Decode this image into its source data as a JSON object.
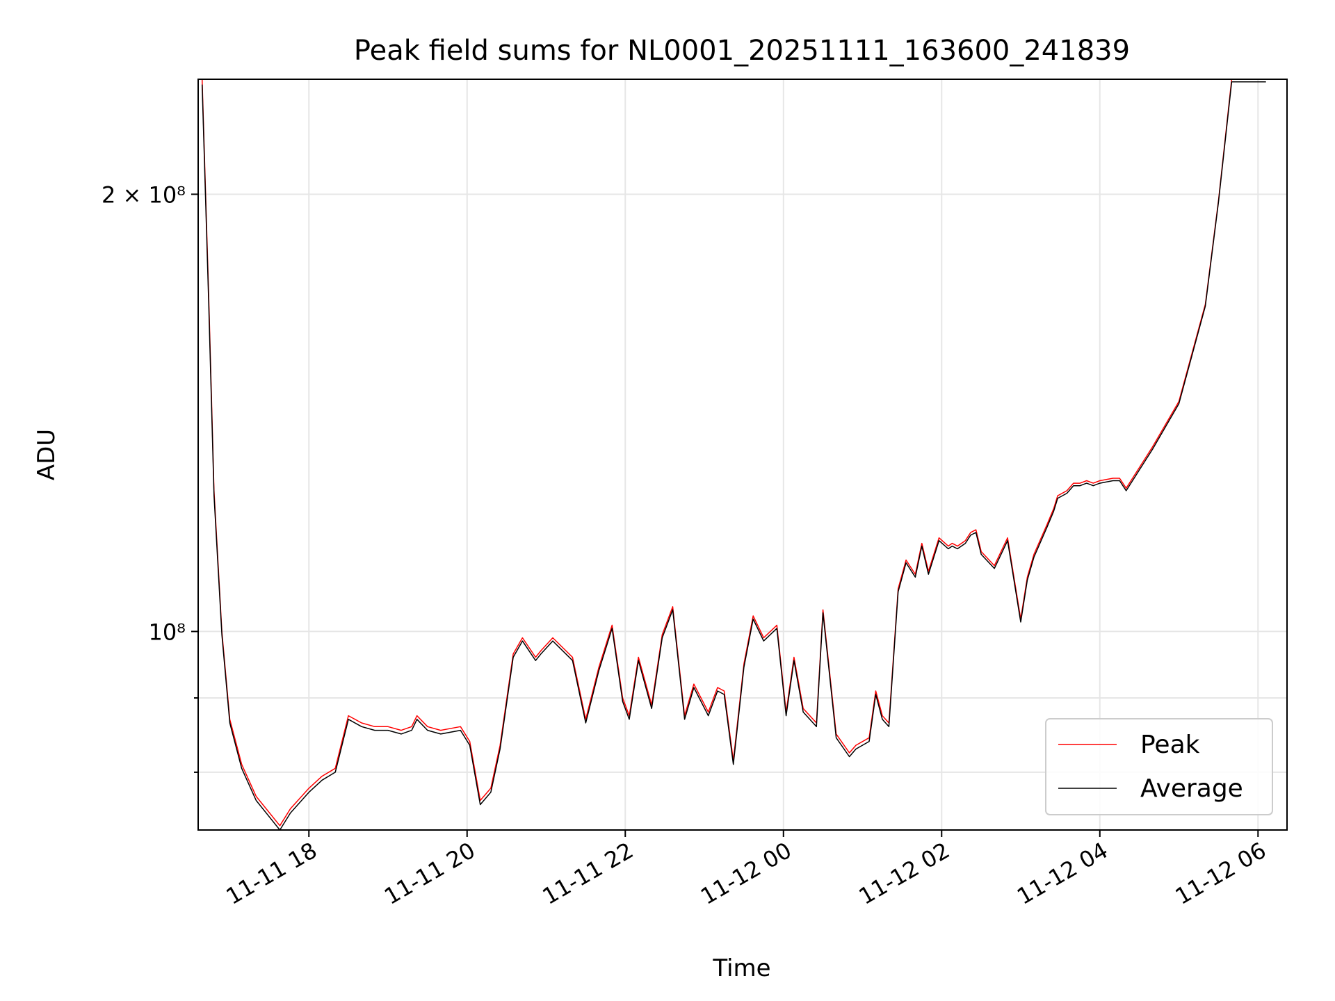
{
  "chart_data": {
    "type": "line",
    "title": "Peak field sums for NL0001_20251111_163600_241839",
    "xlabel": "Time",
    "ylabel": "ADU",
    "x_start": "2025-11-11 16:36",
    "x_end": "2025-11-12 06:22",
    "ylim": [
      73000000,
      240000000
    ],
    "yscale": "log",
    "grid": true,
    "legend_position": "lower-right",
    "x_ticks": [
      "11-11 18",
      "11-11 20",
      "11-11 22",
      "11-12 00",
      "11-12 02",
      "11-12 04",
      "11-12 06"
    ],
    "x_tick_times": [
      "2025-11-11 18:00",
      "2025-11-11 20:00",
      "2025-11-11 22:00",
      "2025-11-12 00:00",
      "2025-11-12 02:00",
      "2025-11-12 04:00",
      "2025-11-12 06:00"
    ],
    "y_ticks": [
      {
        "value": 100000000,
        "label": "10⁸",
        "major": true
      },
      {
        "value": 200000000,
        "label": "2 × 10⁸",
        "major": true
      },
      {
        "value": 80000000,
        "label": "",
        "major": false
      },
      {
        "value": 90000000,
        "label": "",
        "major": false
      }
    ],
    "times": [
      "2025-11-11 16:39",
      "2025-11-11 16:44",
      "2025-11-11 16:48",
      "2025-11-11 16:54",
      "2025-11-11 17:00",
      "2025-11-11 17:09",
      "2025-11-11 17:20",
      "2025-11-11 17:38",
      "2025-11-11 17:46",
      "2025-11-11 18:00",
      "2025-11-11 18:10",
      "2025-11-11 18:20",
      "2025-11-11 18:30",
      "2025-11-11 18:40",
      "2025-11-11 18:50",
      "2025-11-11 19:00",
      "2025-11-11 19:10",
      "2025-11-11 19:18",
      "2025-11-11 19:22",
      "2025-11-11 19:30",
      "2025-11-11 19:40",
      "2025-11-11 19:55",
      "2025-11-11 20:02",
      "2025-11-11 20:10",
      "2025-11-11 20:18",
      "2025-11-11 20:25",
      "2025-11-11 20:35",
      "2025-11-11 20:42",
      "2025-11-11 20:52",
      "2025-11-11 20:56",
      "2025-11-11 21:05",
      "2025-11-11 21:20",
      "2025-11-11 21:30",
      "2025-11-11 21:40",
      "2025-11-11 21:50",
      "2025-11-11 21:58",
      "2025-11-11 22:03",
      "2025-11-11 22:10",
      "2025-11-11 22:20",
      "2025-11-11 22:28",
      "2025-11-11 22:36",
      "2025-11-11 22:45",
      "2025-11-11 22:52",
      "2025-11-11 23:03",
      "2025-11-11 23:10",
      "2025-11-11 23:15",
      "2025-11-11 23:22",
      "2025-11-11 23:30",
      "2025-11-11 23:37",
      "2025-11-11 23:45",
      "2025-11-11 23:55",
      "2025-11-12 00:02",
      "2025-11-12 00:08",
      "2025-11-12 00:15",
      "2025-11-12 00:25",
      "2025-11-12 00:30",
      "2025-11-12 00:40",
      "2025-11-12 00:50",
      "2025-11-12 00:55",
      "2025-11-12 01:05",
      "2025-11-12 01:10",
      "2025-11-12 01:15",
      "2025-11-12 01:20",
      "2025-11-12 01:27",
      "2025-11-12 01:33",
      "2025-11-12 01:40",
      "2025-11-12 01:45",
      "2025-11-12 01:50",
      "2025-11-12 01:58",
      "2025-11-12 02:05",
      "2025-11-12 02:08",
      "2025-11-12 02:12",
      "2025-11-12 02:18",
      "2025-11-12 02:22",
      "2025-11-12 02:26",
      "2025-11-12 02:30",
      "2025-11-12 02:40",
      "2025-11-12 02:50",
      "2025-11-12 03:00",
      "2025-11-12 03:05",
      "2025-11-12 03:10",
      "2025-11-12 03:20",
      "2025-11-12 03:25",
      "2025-11-12 03:28",
      "2025-11-12 03:35",
      "2025-11-12 03:40",
      "2025-11-12 03:45",
      "2025-11-12 03:50",
      "2025-11-12 03:55",
      "2025-11-12 04:00",
      "2025-11-12 04:10",
      "2025-11-12 04:15",
      "2025-11-12 04:20",
      "2025-11-12 04:40",
      "2025-11-12 05:00",
      "2025-11-12 05:20",
      "2025-11-12 05:30",
      "2025-11-12 05:40",
      "2025-11-12 05:48",
      "2025-11-12 05:55",
      "2025-11-12 06:00",
      "2025-11-12 06:06"
    ],
    "series": [
      {
        "name": "Peak",
        "color": "#ff0000",
        "values": [
          240000000,
          170000000,
          125000000,
          100000000,
          87000000,
          81000000,
          77000000,
          73500000,
          75500000,
          78000000,
          79500000,
          80500000,
          87500000,
          86500000,
          86000000,
          86000000,
          85500000,
          86000000,
          87500000,
          86000000,
          85500000,
          86000000,
          84000000,
          76500000,
          78000000,
          83500000,
          96500000,
          99000000,
          96000000,
          97000000,
          99000000,
          96000000,
          87000000,
          94500000,
          101000000,
          90000000,
          87500000,
          96000000,
          89000000,
          99500000,
          104000000,
          87500000,
          92000000,
          88000000,
          91500000,
          91000000,
          81500000,
          95000000,
          102500000,
          99000000,
          101000000,
          88000000,
          96000000,
          88500000,
          86500000,
          103500000,
          85000000,
          82500000,
          83500000,
          84500000,
          91000000,
          87500000,
          86500000,
          107000000,
          112000000,
          109500000,
          115000000,
          110000000,
          116000000,
          114500000,
          115000000,
          114500000,
          115500000,
          117000000,
          117500000,
          113500000,
          111000000,
          116000000,
          102000000,
          109000000,
          113000000,
          118500000,
          121500000,
          124000000,
          125000000,
          126500000,
          126500000,
          127000000,
          126500000,
          127000000,
          127500000,
          127500000,
          125500000,
          134000000,
          144000000,
          168000000,
          198000000,
          240000000,
          240000000,
          240000000,
          240000000,
          240000000
        ]
      },
      {
        "name": "Average",
        "color": "#000000",
        "values": [
          238000000,
          168000000,
          124000000,
          99500000,
          86500000,
          80500000,
          76500000,
          73000000,
          75000000,
          77500000,
          79000000,
          80000000,
          87000000,
          86000000,
          85500000,
          85500000,
          85000000,
          85500000,
          87000000,
          85500000,
          85000000,
          85500000,
          83500000,
          76000000,
          77500000,
          83000000,
          96000000,
          98500000,
          95500000,
          96500000,
          98500000,
          95500000,
          86500000,
          94000000,
          100500000,
          89500000,
          87000000,
          95500000,
          88500000,
          99000000,
          103500000,
          87000000,
          91500000,
          87500000,
          91000000,
          90500000,
          81000000,
          94500000,
          102000000,
          98500000,
          100500000,
          87500000,
          95500000,
          88000000,
          86000000,
          103000000,
          84500000,
          82000000,
          83000000,
          84000000,
          90500000,
          87000000,
          86000000,
          106500000,
          111500000,
          109000000,
          114500000,
          109500000,
          115500000,
          114000000,
          114500000,
          114000000,
          115000000,
          116500000,
          117000000,
          113000000,
          110500000,
          115500000,
          101500000,
          108500000,
          112500000,
          118000000,
          121000000,
          123500000,
          124500000,
          126000000,
          126000000,
          126500000,
          126000000,
          126500000,
          127000000,
          127000000,
          125000000,
          133500000,
          143500000,
          167500000,
          197500000,
          239000000,
          239000000,
          239000000,
          239000000,
          239000000
        ]
      }
    ]
  }
}
